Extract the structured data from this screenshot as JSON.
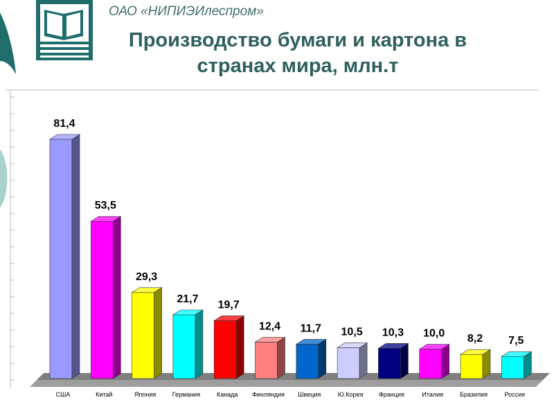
{
  "header": {
    "org_name": "ОАО «НИПИЭИлеспром»",
    "title_line1": "Производство бумаги и картона в",
    "title_line2": "странах мира, млн.т"
  },
  "colors": {
    "accent_teal": "#1f6e6c",
    "light_teal": "#a8d2cc",
    "title": "#2f5f5e"
  },
  "chart_data": {
    "type": "bar",
    "categories": [
      "США",
      "Китай",
      "Япония",
      "Германия",
      "Канада",
      "Финляндия",
      "Швеция",
      "Ю.Корея",
      "Франция",
      "Италия",
      "Бразилия",
      "Россия"
    ],
    "values": [
      81.4,
      53.5,
      29.3,
      21.7,
      19.7,
      12.4,
      11.7,
      10.5,
      10.3,
      10.0,
      8.2,
      7.5
    ],
    "value_labels": [
      "81,4",
      "53,5",
      "29,3",
      "21,7",
      "19,7",
      "12,4",
      "11,7",
      "10,5",
      "10,3",
      "10,0",
      "8,2",
      "7,5"
    ],
    "colors": [
      "#9999ff",
      "#ff00ff",
      "#ffff00",
      "#00ffff",
      "#ff0000",
      "#ff8080",
      "#0066cc",
      "#ccccff",
      "#000080",
      "#ff00ff",
      "#ffff00",
      "#00ffff"
    ],
    "ylim": [
      0,
      90
    ],
    "grid": false,
    "three_d": true
  }
}
